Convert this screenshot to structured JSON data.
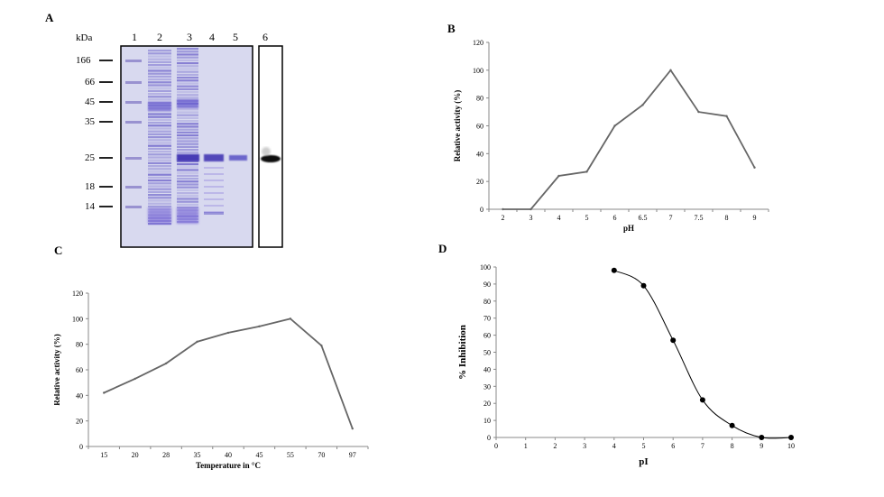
{
  "panels": {
    "A": "A",
    "B": "B",
    "C": "C",
    "D": "D"
  },
  "gel": {
    "unit_label": "kDa",
    "lanes": [
      "1",
      "2",
      "3",
      "4",
      "5",
      "6"
    ],
    "markers": [
      "166",
      "66",
      "45",
      "35",
      "25",
      "18",
      "14"
    ]
  },
  "chart_data": [
    {
      "id": "B",
      "type": "line",
      "categories": [
        "2",
        "3",
        "4",
        "5",
        "6",
        "6.5",
        "7",
        "7.5",
        "8",
        "9"
      ],
      "values": [
        0,
        0,
        24,
        27,
        60,
        75,
        100,
        70,
        67,
        30
      ],
      "xlabel": "pH",
      "ylabel": "Relative activity (%)",
      "ylim": [
        0,
        120
      ],
      "yticks": [
        "0",
        "20",
        "40",
        "60",
        "80",
        "100",
        "120"
      ],
      "color": "#666666"
    },
    {
      "id": "C",
      "type": "line",
      "categories": [
        "15",
        "20",
        "28",
        "35",
        "40",
        "45",
        "55",
        "70",
        "97"
      ],
      "values": [
        42,
        53,
        65,
        82,
        89,
        94,
        100,
        79,
        14
      ],
      "xlabel": "Temperature in °C",
      "ylabel": "Relative activity (%)",
      "ylim": [
        0,
        120
      ],
      "yticks": [
        "0",
        "20",
        "40",
        "60",
        "80",
        "100",
        "120"
      ],
      "color": "#666666"
    },
    {
      "id": "D",
      "type": "scatter",
      "x": [
        4,
        5,
        6,
        7,
        8,
        9,
        10
      ],
      "y": [
        98,
        89,
        57,
        22,
        7,
        0,
        0
      ],
      "xlabel": "pI",
      "ylabel": "% Inhibition",
      "xlim": [
        0,
        10
      ],
      "ylim": [
        0,
        100
      ],
      "xticks": [
        "0",
        "1",
        "2",
        "3",
        "4",
        "5",
        "6",
        "7",
        "8",
        "9",
        "10"
      ],
      "yticks": [
        "0",
        "10",
        "20",
        "30",
        "40",
        "50",
        "60",
        "70",
        "80",
        "90",
        "100"
      ],
      "color": "#000000"
    }
  ]
}
